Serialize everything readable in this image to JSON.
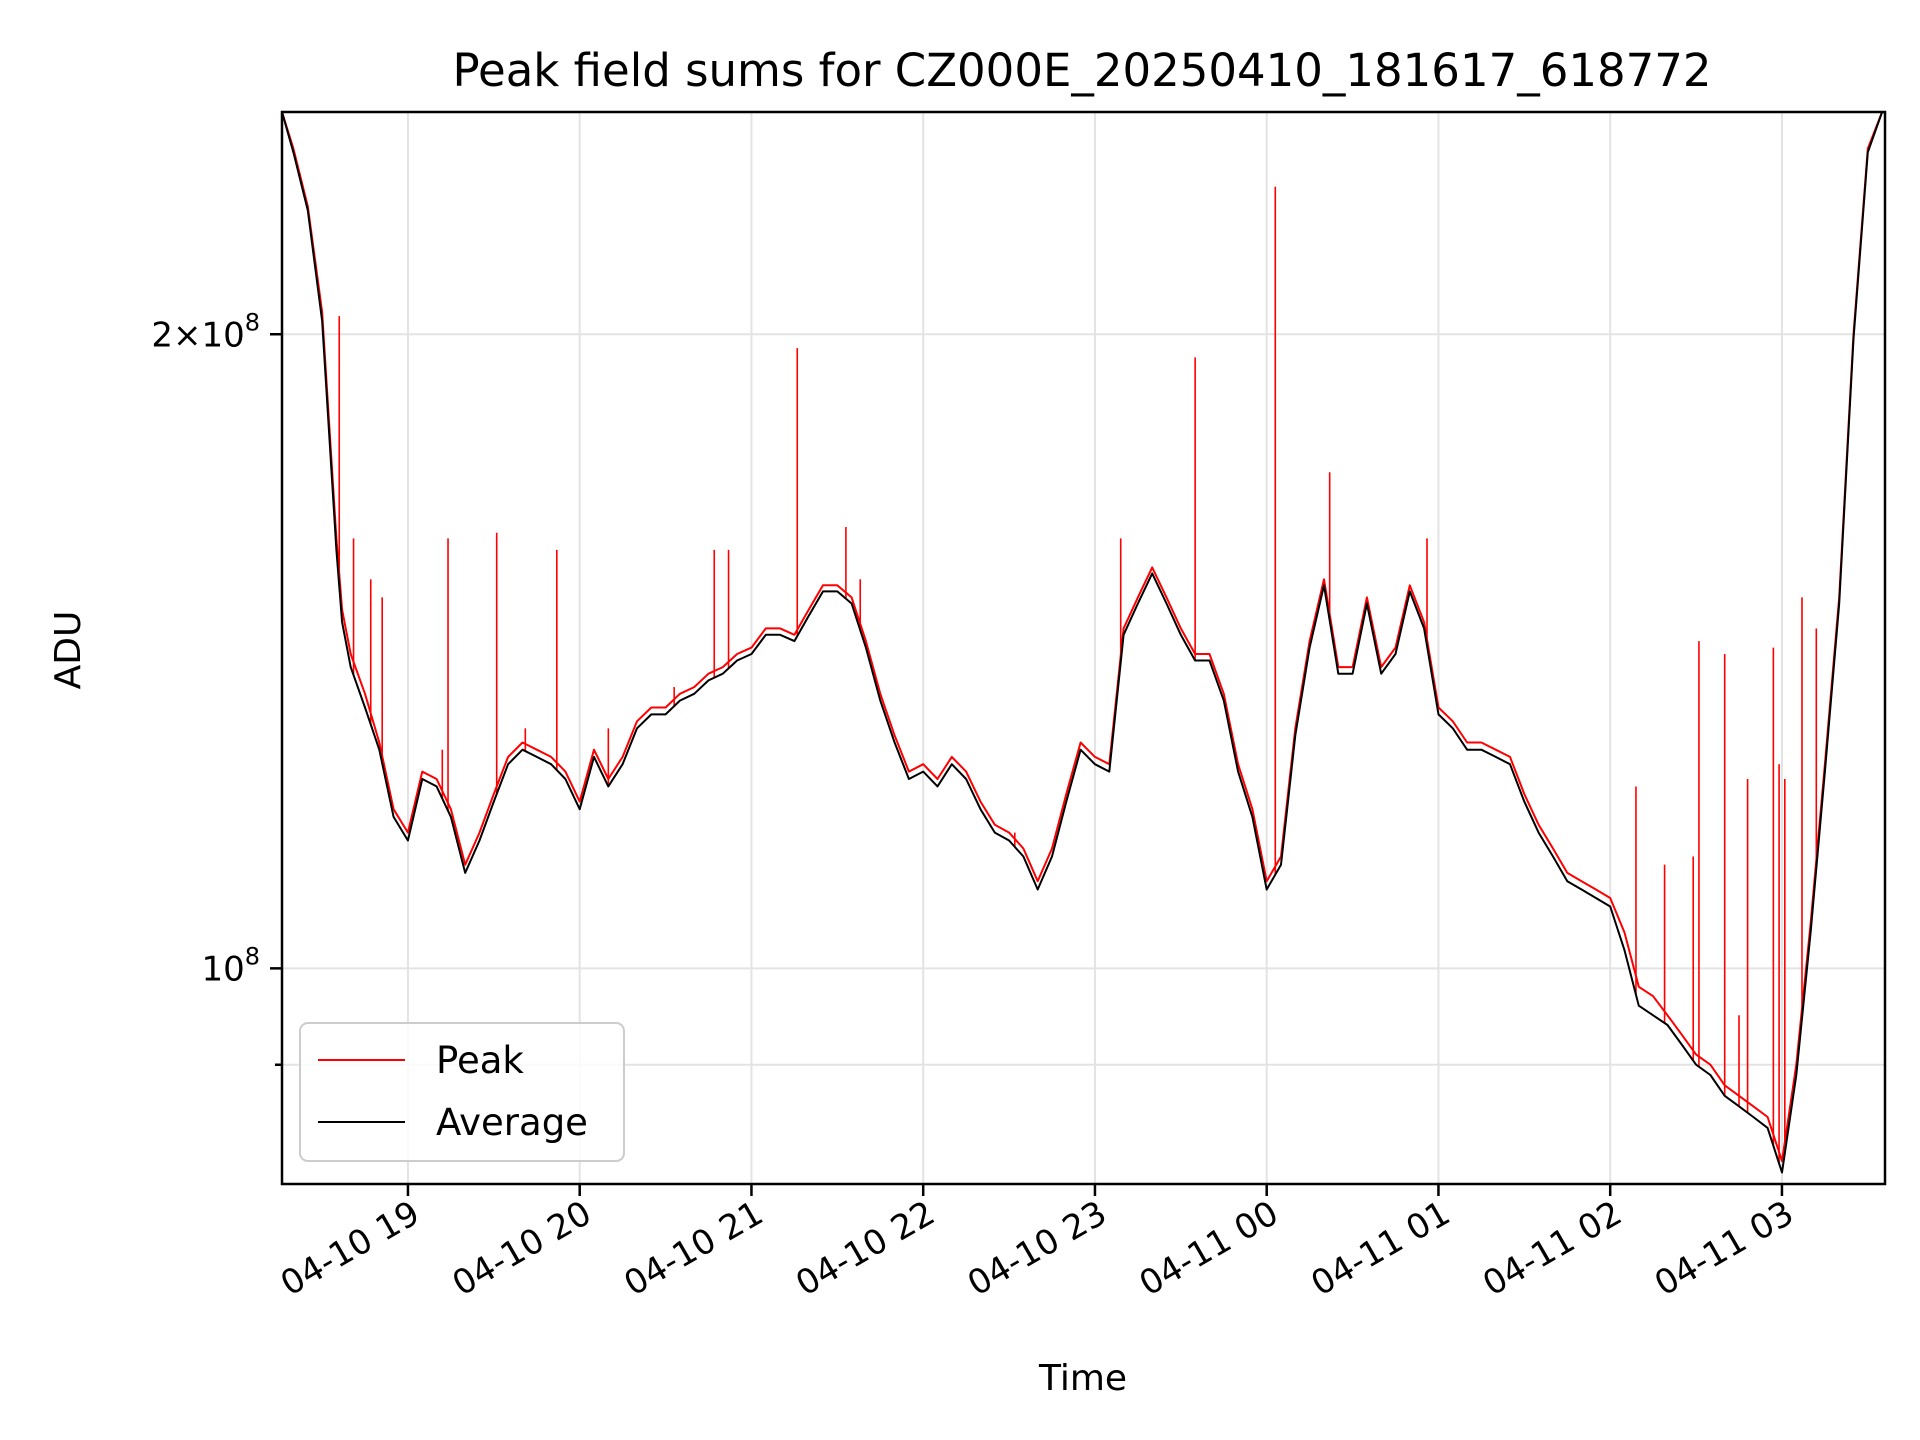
{
  "chart_data": {
    "type": "line",
    "title": "Peak field sums for CZ000E_20250410_181617_618772",
    "xlabel": "Time",
    "ylabel": "ADU",
    "yscale": "log",
    "grid": true,
    "legend_position": "lower-left",
    "xlim": [
      "2025-04-10 18:16",
      "2025-04-11 03:36"
    ],
    "ylim": [
      79000000,
      255000000
    ],
    "x_ticks": [
      {
        "value": "2025-04-10 19:00",
        "label": "04-10 19"
      },
      {
        "value": "2025-04-10 20:00",
        "label": "04-10 20"
      },
      {
        "value": "2025-04-10 21:00",
        "label": "04-10 21"
      },
      {
        "value": "2025-04-10 22:00",
        "label": "04-10 22"
      },
      {
        "value": "2025-04-10 23:00",
        "label": "04-10 23"
      },
      {
        "value": "2025-04-11 00:00",
        "label": "04-11 00"
      },
      {
        "value": "2025-04-11 01:00",
        "label": "04-11 01"
      },
      {
        "value": "2025-04-11 02:00",
        "label": "04-11 02"
      },
      {
        "value": "2025-04-11 03:00",
        "label": "04-11 03"
      }
    ],
    "y_major_ticks": [
      {
        "value": 100000000,
        "base": "10",
        "exp": "8",
        "mantissa": ""
      },
      {
        "value": 200000000,
        "base": "10",
        "exp": "8",
        "mantissa": "2×"
      }
    ],
    "y_minor_ticks": [
      90000000
    ],
    "series": [
      {
        "name": "Peak",
        "color": "#ff0000",
        "x": [
          "2025-04-10 18:16",
          "2025-04-10 18:20",
          "2025-04-10 18:25",
          "2025-04-10 18:30",
          "2025-04-10 18:35",
          "2025-04-10 18:37",
          "2025-04-10 18:40",
          "2025-04-10 18:45",
          "2025-04-10 18:50",
          "2025-04-10 18:55",
          "2025-04-10 19:00",
          "2025-04-10 19:05",
          "2025-04-10 19:10",
          "2025-04-10 19:15",
          "2025-04-10 19:20",
          "2025-04-10 19:25",
          "2025-04-10 19:30",
          "2025-04-10 19:35",
          "2025-04-10 19:40",
          "2025-04-10 19:45",
          "2025-04-10 19:50",
          "2025-04-10 19:55",
          "2025-04-10 20:00",
          "2025-04-10 20:05",
          "2025-04-10 20:10",
          "2025-04-10 20:15",
          "2025-04-10 20:20",
          "2025-04-10 20:25",
          "2025-04-10 20:30",
          "2025-04-10 20:35",
          "2025-04-10 20:40",
          "2025-04-10 20:45",
          "2025-04-10 20:50",
          "2025-04-10 20:55",
          "2025-04-10 21:00",
          "2025-04-10 21:05",
          "2025-04-10 21:10",
          "2025-04-10 21:15",
          "2025-04-10 21:20",
          "2025-04-10 21:25",
          "2025-04-10 21:30",
          "2025-04-10 21:35",
          "2025-04-10 21:40",
          "2025-04-10 21:45",
          "2025-04-10 21:50",
          "2025-04-10 21:55",
          "2025-04-10 22:00",
          "2025-04-10 22:05",
          "2025-04-10 22:10",
          "2025-04-10 22:15",
          "2025-04-10 22:20",
          "2025-04-10 22:25",
          "2025-04-10 22:30",
          "2025-04-10 22:35",
          "2025-04-10 22:40",
          "2025-04-10 22:45",
          "2025-04-10 22:50",
          "2025-04-10 22:55",
          "2025-04-10 23:00",
          "2025-04-10 23:05",
          "2025-04-10 23:10",
          "2025-04-10 23:15",
          "2025-04-10 23:20",
          "2025-04-10 23:25",
          "2025-04-10 23:30",
          "2025-04-10 23:35",
          "2025-04-10 23:40",
          "2025-04-10 23:45",
          "2025-04-10 23:50",
          "2025-04-10 23:55",
          "2025-04-11 00:00",
          "2025-04-11 00:05",
          "2025-04-11 00:10",
          "2025-04-11 00:15",
          "2025-04-11 00:20",
          "2025-04-11 00:25",
          "2025-04-11 00:30",
          "2025-04-11 00:35",
          "2025-04-11 00:40",
          "2025-04-11 00:45",
          "2025-04-11 00:50",
          "2025-04-11 00:55",
          "2025-04-11 01:00",
          "2025-04-11 01:05",
          "2025-04-11 01:10",
          "2025-04-11 01:15",
          "2025-04-11 01:20",
          "2025-04-11 01:25",
          "2025-04-11 01:30",
          "2025-04-11 01:35",
          "2025-04-11 01:40",
          "2025-04-11 01:45",
          "2025-04-11 01:50",
          "2025-04-11 01:55",
          "2025-04-11 02:00",
          "2025-04-11 02:05",
          "2025-04-11 02:10",
          "2025-04-11 02:15",
          "2025-04-11 02:20",
          "2025-04-11 02:25",
          "2025-04-11 02:30",
          "2025-04-11 02:35",
          "2025-04-11 02:40",
          "2025-04-11 02:45",
          "2025-04-11 02:50",
          "2025-04-11 02:55",
          "2025-04-11 03:00",
          "2025-04-11 03:05",
          "2025-04-11 03:10",
          "2025-04-11 03:15",
          "2025-04-11 03:20",
          "2025-04-11 03:25",
          "2025-04-11 03:30",
          "2025-04-11 03:35"
        ],
        "values": [
          255000000,
          245000000,
          230000000,
          205000000,
          160000000,
          148000000,
          141000000,
          135000000,
          128000000,
          119000000,
          116000000,
          124000000,
          123000000,
          119000000,
          112000000,
          116000000,
          121000000,
          126000000,
          128000000,
          127000000,
          126000000,
          124000000,
          120000000,
          127000000,
          123000000,
          126000000,
          131000000,
          133000000,
          133000000,
          135000000,
          136000000,
          138000000,
          139000000,
          141000000,
          142000000,
          145000000,
          145000000,
          144000000,
          148000000,
          152000000,
          152000000,
          150000000,
          143000000,
          135000000,
          129000000,
          124000000,
          125000000,
          123000000,
          126000000,
          124000000,
          120000000,
          117000000,
          116000000,
          114000000,
          110000000,
          114000000,
          121000000,
          128000000,
          126000000,
          125000000,
          145000000,
          150000000,
          155000000,
          150000000,
          145000000,
          141000000,
          141000000,
          135000000,
          125000000,
          119000000,
          110000000,
          113000000,
          130000000,
          143000000,
          153000000,
          139000000,
          139000000,
          150000000,
          139000000,
          142000000,
          152000000,
          146000000,
          133000000,
          131000000,
          128000000,
          128000000,
          127000000,
          126000000,
          121000000,
          117000000,
          114000000,
          111000000,
          110000000,
          109000000,
          108000000,
          104000000,
          98000000,
          97000000,
          95000000,
          93000000,
          91000000,
          90000000,
          88000000,
          87000000,
          86000000,
          85000000,
          81000000,
          90000000,
          105000000,
          125000000,
          150000000,
          200000000,
          245000000,
          255000000
        ],
        "spikes": [
          {
            "x": "2025-04-10 18:36",
            "value": 204000000
          },
          {
            "x": "2025-04-10 18:41",
            "value": 160000000
          },
          {
            "x": "2025-04-10 18:47",
            "value": 153000000
          },
          {
            "x": "2025-04-10 18:51",
            "value": 150000000
          },
          {
            "x": "2025-04-10 19:12",
            "value": 127000000
          },
          {
            "x": "2025-04-10 19:14",
            "value": 160000000
          },
          {
            "x": "2025-04-10 19:31",
            "value": 161000000
          },
          {
            "x": "2025-04-10 19:41",
            "value": 130000000
          },
          {
            "x": "2025-04-10 19:52",
            "value": 158000000
          },
          {
            "x": "2025-04-10 20:10",
            "value": 130000000
          },
          {
            "x": "2025-04-10 20:18",
            "value": 128000000
          },
          {
            "x": "2025-04-10 20:33",
            "value": 136000000
          },
          {
            "x": "2025-04-10 20:47",
            "value": 158000000
          },
          {
            "x": "2025-04-10 20:52",
            "value": 158000000
          },
          {
            "x": "2025-04-10 21:16",
            "value": 197000000
          },
          {
            "x": "2025-04-10 21:33",
            "value": 162000000
          },
          {
            "x": "2025-04-10 21:38",
            "value": 153000000
          },
          {
            "x": "2025-04-10 22:32",
            "value": 116000000
          },
          {
            "x": "2025-04-10 23:09",
            "value": 160000000
          },
          {
            "x": "2025-04-10 23:35",
            "value": 195000000
          },
          {
            "x": "2025-04-11 00:03",
            "value": 235000000
          },
          {
            "x": "2025-04-11 00:22",
            "value": 172000000
          },
          {
            "x": "2025-04-11 00:56",
            "value": 160000000
          },
          {
            "x": "2025-04-11 02:09",
            "value": 122000000
          },
          {
            "x": "2025-04-11 02:19",
            "value": 112000000
          },
          {
            "x": "2025-04-11 02:29",
            "value": 113000000
          },
          {
            "x": "2025-04-11 02:31",
            "value": 143000000
          },
          {
            "x": "2025-04-11 02:40",
            "value": 141000000
          },
          {
            "x": "2025-04-11 02:45",
            "value": 95000000
          },
          {
            "x": "2025-04-11 02:48",
            "value": 123000000
          },
          {
            "x": "2025-04-11 02:57",
            "value": 142000000
          },
          {
            "x": "2025-04-11 02:59",
            "value": 125000000
          },
          {
            "x": "2025-04-11 03:01",
            "value": 123000000
          },
          {
            "x": "2025-04-11 03:07",
            "value": 150000000
          },
          {
            "x": "2025-04-11 03:12",
            "value": 145000000
          }
        ]
      },
      {
        "name": "Average",
        "color": "#000000",
        "x": [
          "2025-04-10 18:16",
          "2025-04-10 18:20",
          "2025-04-10 18:25",
          "2025-04-10 18:30",
          "2025-04-10 18:35",
          "2025-04-10 18:37",
          "2025-04-10 18:40",
          "2025-04-10 18:45",
          "2025-04-10 18:50",
          "2025-04-10 18:55",
          "2025-04-10 19:00",
          "2025-04-10 19:05",
          "2025-04-10 19:10",
          "2025-04-10 19:15",
          "2025-04-10 19:20",
          "2025-04-10 19:25",
          "2025-04-10 19:30",
          "2025-04-10 19:35",
          "2025-04-10 19:40",
          "2025-04-10 19:45",
          "2025-04-10 19:50",
          "2025-04-10 19:55",
          "2025-04-10 20:00",
          "2025-04-10 20:05",
          "2025-04-10 20:10",
          "2025-04-10 20:15",
          "2025-04-10 20:20",
          "2025-04-10 20:25",
          "2025-04-10 20:30",
          "2025-04-10 20:35",
          "2025-04-10 20:40",
          "2025-04-10 20:45",
          "2025-04-10 20:50",
          "2025-04-10 20:55",
          "2025-04-10 21:00",
          "2025-04-10 21:05",
          "2025-04-10 21:10",
          "2025-04-10 21:15",
          "2025-04-10 21:20",
          "2025-04-10 21:25",
          "2025-04-10 21:30",
          "2025-04-10 21:35",
          "2025-04-10 21:40",
          "2025-04-10 21:45",
          "2025-04-10 21:50",
          "2025-04-10 21:55",
          "2025-04-10 22:00",
          "2025-04-10 22:05",
          "2025-04-10 22:10",
          "2025-04-10 22:15",
          "2025-04-10 22:20",
          "2025-04-10 22:25",
          "2025-04-10 22:30",
          "2025-04-10 22:35",
          "2025-04-10 22:40",
          "2025-04-10 22:45",
          "2025-04-10 22:50",
          "2025-04-10 22:55",
          "2025-04-10 23:00",
          "2025-04-10 23:05",
          "2025-04-10 23:10",
          "2025-04-10 23:15",
          "2025-04-10 23:20",
          "2025-04-10 23:25",
          "2025-04-10 23:30",
          "2025-04-10 23:35",
          "2025-04-10 23:40",
          "2025-04-10 23:45",
          "2025-04-10 23:50",
          "2025-04-10 23:55",
          "2025-04-11 00:00",
          "2025-04-11 00:05",
          "2025-04-11 00:10",
          "2025-04-11 00:15",
          "2025-04-11 00:20",
          "2025-04-11 00:25",
          "2025-04-11 00:30",
          "2025-04-11 00:35",
          "2025-04-11 00:40",
          "2025-04-11 00:45",
          "2025-04-11 00:50",
          "2025-04-11 00:55",
          "2025-04-11 01:00",
          "2025-04-11 01:05",
          "2025-04-11 01:10",
          "2025-04-11 01:15",
          "2025-04-11 01:20",
          "2025-04-11 01:25",
          "2025-04-11 01:30",
          "2025-04-11 01:35",
          "2025-04-11 01:40",
          "2025-04-11 01:45",
          "2025-04-11 01:50",
          "2025-04-11 01:55",
          "2025-04-11 02:00",
          "2025-04-11 02:05",
          "2025-04-11 02:10",
          "2025-04-11 02:15",
          "2025-04-11 02:20",
          "2025-04-11 02:25",
          "2025-04-11 02:30",
          "2025-04-11 02:35",
          "2025-04-11 02:40",
          "2025-04-11 02:45",
          "2025-04-11 02:50",
          "2025-04-11 02:55",
          "2025-04-11 03:00",
          "2025-04-11 03:05",
          "2025-04-11 03:10",
          "2025-04-11 03:15",
          "2025-04-11 03:20",
          "2025-04-11 03:25",
          "2025-04-11 03:30",
          "2025-04-11 03:35"
        ],
        "values": [
          255000000,
          244000000,
          229000000,
          203000000,
          158000000,
          146000000,
          139000000,
          133000000,
          127000000,
          118000000,
          115000000,
          123000000,
          122000000,
          118000000,
          111000000,
          115000000,
          120000000,
          125000000,
          127000000,
          126000000,
          125000000,
          123000000,
          119000000,
          126000000,
          122000000,
          125000000,
          130000000,
          132000000,
          132000000,
          134000000,
          135000000,
          137000000,
          138000000,
          140000000,
          141000000,
          144000000,
          144000000,
          143000000,
          147000000,
          151000000,
          151000000,
          149000000,
          142000000,
          134000000,
          128000000,
          123000000,
          124000000,
          122000000,
          125000000,
          123000000,
          119000000,
          116000000,
          115000000,
          113000000,
          109000000,
          113000000,
          120000000,
          127000000,
          125000000,
          124000000,
          144000000,
          149000000,
          154000000,
          149000000,
          144000000,
          140000000,
          140000000,
          134000000,
          124000000,
          118000000,
          109000000,
          112000000,
          129000000,
          142000000,
          152000000,
          138000000,
          138000000,
          149000000,
          138000000,
          141000000,
          151000000,
          145000000,
          132000000,
          130000000,
          127000000,
          127000000,
          126000000,
          125000000,
          120000000,
          116000000,
          113000000,
          110000000,
          109000000,
          108000000,
          107000000,
          102000000,
          96000000,
          95000000,
          94000000,
          92000000,
          90000000,
          89000000,
          87000000,
          86000000,
          85000000,
          84000000,
          80000000,
          89000000,
          104000000,
          124000000,
          149000000,
          199000000,
          244000000,
          255000000
        ]
      }
    ]
  }
}
